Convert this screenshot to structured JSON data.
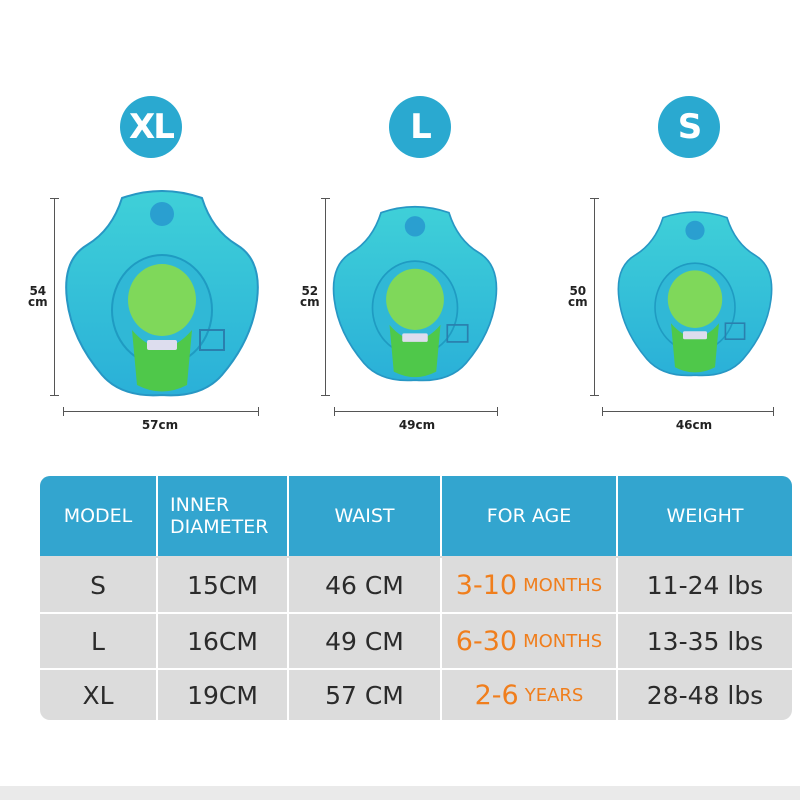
{
  "sizes": [
    {
      "badge": "XL",
      "height": "54",
      "height_unit": "cm",
      "width": "57cm"
    },
    {
      "badge": "L",
      "height": "52",
      "height_unit": "cm",
      "width": "49cm"
    },
    {
      "badge": "S",
      "height": "50",
      "height_unit": "cm",
      "width": "46cm"
    }
  ],
  "table": {
    "headers": {
      "model": "MODEL",
      "inner_1": "INNER",
      "inner_2": "DIAMETER",
      "waist": "WAIST",
      "age": "FOR AGE",
      "weight": "WEIGHT"
    },
    "rows": [
      {
        "model": "S",
        "inner": "15CM",
        "waist": "46 CM",
        "age_num": "3-10",
        "age_unit": "MONTHS",
        "weight": "11-24 lbs"
      },
      {
        "model": "L",
        "inner": "16CM",
        "waist": "49 CM",
        "age_num": "6-30",
        "age_unit": "MONTHS",
        "weight": "13-35 lbs"
      },
      {
        "model": "XL",
        "inner": "19CM",
        "waist": "57 CM",
        "age_num": "2-6",
        "age_unit": "YEARS",
        "weight": "28-48 lbs"
      }
    ]
  },
  "colors": {
    "accent": "#33a5cf",
    "age": "#f07e1c",
    "row_bg": "#dcdcdc"
  },
  "icons": [
    "baby-swim-float-image"
  ]
}
